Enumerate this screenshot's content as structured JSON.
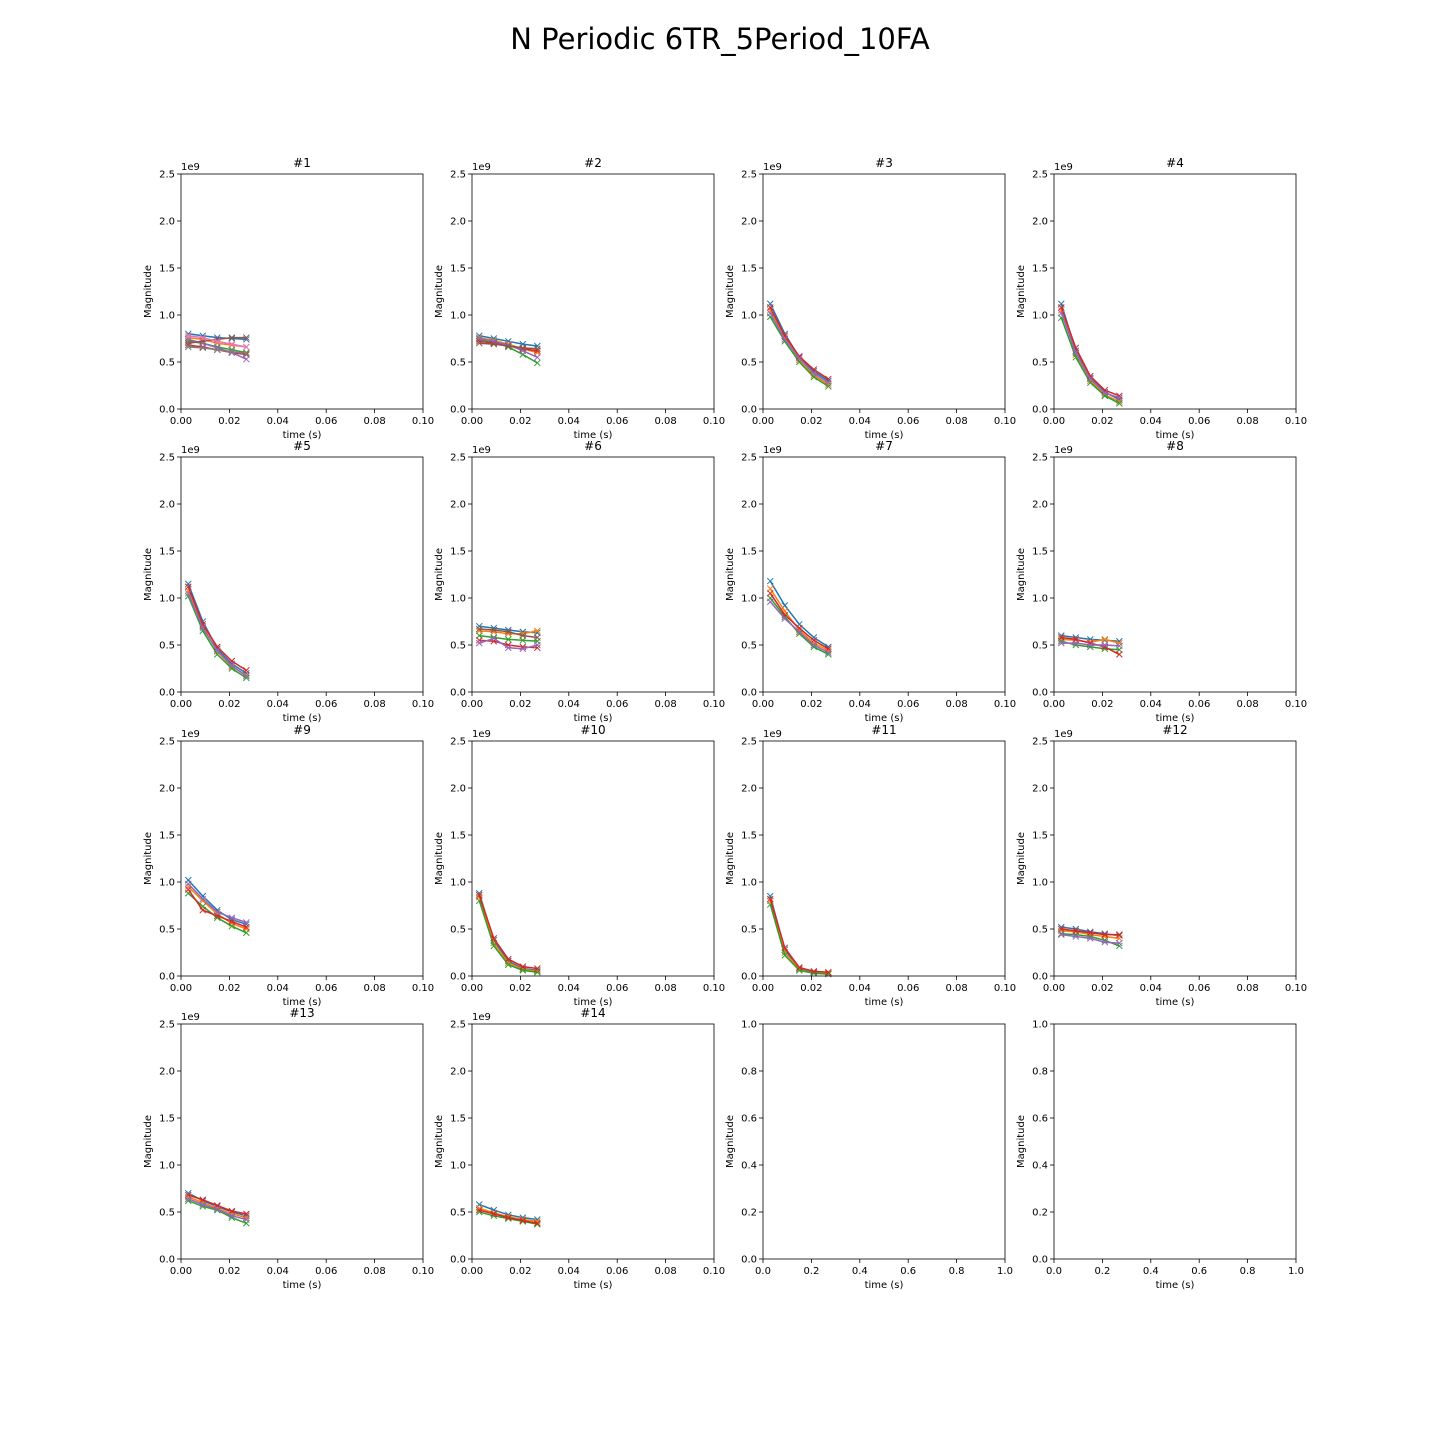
{
  "figure_title": "N Periodic 6TR_5Period_10FA",
  "chart_data": [
    {
      "type": "line",
      "title": "#1",
      "xlabel": "time (s)",
      "ylabel": "Magnitude",
      "xlim": [
        0,
        0.1
      ],
      "ylim": [
        0,
        2.5
      ],
      "y_offset_label": "1e9",
      "xticks": [
        "0.00",
        "0.02",
        "0.04",
        "0.06",
        "0.08",
        "0.10"
      ],
      "yticks": [
        "0.0",
        "0.5",
        "1.0",
        "1.5",
        "2.0",
        "2.5"
      ],
      "x": [
        0.003,
        0.009,
        0.015,
        0.021,
        0.027
      ],
      "series": [
        {
          "values": [
            0.8,
            0.78,
            0.76,
            0.75,
            0.74
          ]
        },
        {
          "values": [
            0.76,
            0.74,
            0.7,
            0.68,
            0.66
          ]
        },
        {
          "values": [
            0.72,
            0.7,
            0.66,
            0.63,
            0.6
          ]
        },
        {
          "values": [
            0.68,
            0.66,
            0.63,
            0.6,
            0.58
          ]
        },
        {
          "values": [
            0.74,
            0.7,
            0.65,
            0.6,
            0.53
          ]
        },
        {
          "values": [
            0.7,
            0.72,
            0.74,
            0.76,
            0.76
          ]
        },
        {
          "values": [
            0.78,
            0.76,
            0.72,
            0.69,
            0.66
          ]
        },
        {
          "values": [
            0.66,
            0.65,
            0.63,
            0.61,
            0.59
          ]
        }
      ]
    },
    {
      "type": "line",
      "title": "#2",
      "xlabel": "time (s)",
      "ylabel": "Magnitude",
      "xlim": [
        0,
        0.1
      ],
      "ylim": [
        0,
        2.5
      ],
      "y_offset_label": "1e9",
      "xticks": [
        "0.00",
        "0.02",
        "0.04",
        "0.06",
        "0.08",
        "0.10"
      ],
      "yticks": [
        "0.0",
        "0.5",
        "1.0",
        "1.5",
        "2.0",
        "2.5"
      ],
      "x": [
        0.003,
        0.009,
        0.015,
        0.021,
        0.027
      ],
      "series": [
        {
          "values": [
            0.78,
            0.75,
            0.72,
            0.69,
            0.67
          ]
        },
        {
          "values": [
            0.76,
            0.73,
            0.69,
            0.64,
            0.6
          ]
        },
        {
          "values": [
            0.74,
            0.71,
            0.66,
            0.58,
            0.49
          ]
        },
        {
          "values": [
            0.72,
            0.7,
            0.67,
            0.64,
            0.62
          ]
        },
        {
          "values": [
            0.75,
            0.72,
            0.68,
            0.62,
            0.55
          ]
        },
        {
          "values": [
            0.7,
            0.69,
            0.67,
            0.65,
            0.64
          ]
        }
      ]
    },
    {
      "type": "line",
      "title": "#3",
      "xlabel": "time (s)",
      "ylabel": "Magnitude",
      "xlim": [
        0,
        0.1
      ],
      "ylim": [
        0,
        2.5
      ],
      "y_offset_label": "1e9",
      "xticks": [
        "0.00",
        "0.02",
        "0.04",
        "0.06",
        "0.08",
        "0.10"
      ],
      "yticks": [
        "0.0",
        "0.5",
        "1.0",
        "1.5",
        "2.0",
        "2.5"
      ],
      "x": [
        0.003,
        0.009,
        0.015,
        0.021,
        0.027
      ],
      "series": [
        {
          "values": [
            1.12,
            0.8,
            0.55,
            0.4,
            0.3
          ]
        },
        {
          "values": [
            1.05,
            0.76,
            0.52,
            0.36,
            0.26
          ]
        },
        {
          "values": [
            0.98,
            0.72,
            0.5,
            0.34,
            0.24
          ]
        },
        {
          "values": [
            1.08,
            0.78,
            0.56,
            0.42,
            0.32
          ]
        },
        {
          "values": [
            1.02,
            0.74,
            0.54,
            0.38,
            0.28
          ]
        }
      ]
    },
    {
      "type": "line",
      "title": "#4",
      "xlabel": "time (s)",
      "ylabel": "Magnitude",
      "xlim": [
        0,
        0.1
      ],
      "ylim": [
        0,
        2.5
      ],
      "y_offset_label": "1e9",
      "xticks": [
        "0.00",
        "0.02",
        "0.04",
        "0.06",
        "0.08",
        "0.10"
      ],
      "yticks": [
        "0.0",
        "0.5",
        "1.0",
        "1.5",
        "2.0",
        "2.5"
      ],
      "x": [
        0.003,
        0.009,
        0.015,
        0.021,
        0.027
      ],
      "series": [
        {
          "values": [
            1.12,
            0.62,
            0.33,
            0.18,
            0.1
          ]
        },
        {
          "values": [
            1.05,
            0.58,
            0.3,
            0.15,
            0.08
          ]
        },
        {
          "values": [
            0.97,
            0.55,
            0.28,
            0.14,
            0.06
          ]
        },
        {
          "values": [
            1.08,
            0.65,
            0.35,
            0.2,
            0.14
          ]
        },
        {
          "values": [
            1.02,
            0.6,
            0.32,
            0.17,
            0.12
          ]
        }
      ]
    },
    {
      "type": "line",
      "title": "#5",
      "xlabel": "time (s)",
      "ylabel": "Magnitude",
      "xlim": [
        0,
        0.1
      ],
      "ylim": [
        0,
        2.5
      ],
      "y_offset_label": "1e9",
      "xticks": [
        "0.00",
        "0.02",
        "0.04",
        "0.06",
        "0.08",
        "0.10"
      ],
      "yticks": [
        "0.0",
        "0.5",
        "1.0",
        "1.5",
        "2.0",
        "2.5"
      ],
      "x": [
        0.003,
        0.009,
        0.015,
        0.021,
        0.027
      ],
      "series": [
        {
          "values": [
            1.15,
            0.75,
            0.46,
            0.3,
            0.2
          ]
        },
        {
          "values": [
            1.08,
            0.7,
            0.43,
            0.27,
            0.18
          ]
        },
        {
          "values": [
            1.02,
            0.65,
            0.4,
            0.25,
            0.15
          ]
        },
        {
          "values": [
            1.12,
            0.72,
            0.48,
            0.33,
            0.23
          ]
        },
        {
          "values": [
            1.05,
            0.68,
            0.44,
            0.28,
            0.17
          ]
        }
      ]
    },
    {
      "type": "line",
      "title": "#6",
      "xlabel": "time (s)",
      "ylabel": "Magnitude",
      "xlim": [
        0,
        0.1
      ],
      "ylim": [
        0,
        2.5
      ],
      "y_offset_label": "1e9",
      "xticks": [
        "0.00",
        "0.02",
        "0.04",
        "0.06",
        "0.08",
        "0.10"
      ],
      "yticks": [
        "0.0",
        "0.5",
        "1.0",
        "1.5",
        "2.0",
        "2.5"
      ],
      "x": [
        0.003,
        0.009,
        0.015,
        0.021,
        0.027
      ],
      "series": [
        {
          "values": [
            0.7,
            0.68,
            0.66,
            0.64,
            0.63
          ]
        },
        {
          "values": [
            0.65,
            0.64,
            0.62,
            0.62,
            0.65
          ]
        },
        {
          "values": [
            0.6,
            0.58,
            0.56,
            0.55,
            0.54
          ]
        },
        {
          "values": [
            0.55,
            0.54,
            0.5,
            0.48,
            0.47
          ]
        },
        {
          "values": [
            0.52,
            0.57,
            0.47,
            0.46,
            0.5
          ]
        },
        {
          "values": [
            0.67,
            0.66,
            0.64,
            0.6,
            0.58
          ]
        }
      ]
    },
    {
      "type": "line",
      "title": "#7",
      "xlabel": "time (s)",
      "ylabel": "Magnitude",
      "xlim": [
        0,
        0.1
      ],
      "ylim": [
        0,
        2.5
      ],
      "y_offset_label": "1e9",
      "xticks": [
        "0.00",
        "0.02",
        "0.04",
        "0.06",
        "0.08",
        "0.10"
      ],
      "yticks": [
        "0.0",
        "0.5",
        "1.0",
        "1.5",
        "2.0",
        "2.5"
      ],
      "x": [
        0.003,
        0.009,
        0.015,
        0.021,
        0.027
      ],
      "series": [
        {
          "values": [
            1.18,
            0.92,
            0.72,
            0.58,
            0.48
          ]
        },
        {
          "values": [
            1.1,
            0.86,
            0.66,
            0.52,
            0.44
          ]
        },
        {
          "values": [
            1.0,
            0.8,
            0.62,
            0.48,
            0.4
          ]
        },
        {
          "values": [
            1.05,
            0.82,
            0.68,
            0.55,
            0.46
          ]
        },
        {
          "values": [
            0.96,
            0.78,
            0.64,
            0.5,
            0.42
          ]
        }
      ]
    },
    {
      "type": "line",
      "title": "#8",
      "xlabel": "time (s)",
      "ylabel": "Magnitude",
      "xlim": [
        0,
        0.1
      ],
      "ylim": [
        0,
        2.5
      ],
      "y_offset_label": "1e9",
      "xticks": [
        "0.00",
        "0.02",
        "0.04",
        "0.06",
        "0.08",
        "0.10"
      ],
      "yticks": [
        "0.0",
        "0.5",
        "1.0",
        "1.5",
        "2.0",
        "2.5"
      ],
      "x": [
        0.003,
        0.009,
        0.015,
        0.021,
        0.027
      ],
      "series": [
        {
          "values": [
            0.6,
            0.58,
            0.56,
            0.55,
            0.54
          ]
        },
        {
          "values": [
            0.56,
            0.55,
            0.53,
            0.56,
            0.52
          ]
        },
        {
          "values": [
            0.54,
            0.5,
            0.48,
            0.46,
            0.45
          ]
        },
        {
          "values": [
            0.58,
            0.56,
            0.52,
            0.48,
            0.4
          ]
        },
        {
          "values": [
            0.52,
            0.52,
            0.5,
            0.5,
            0.49
          ]
        }
      ]
    },
    {
      "type": "line",
      "title": "#9",
      "xlabel": "time (s)",
      "ylabel": "Magnitude",
      "xlim": [
        0,
        0.1
      ],
      "ylim": [
        0,
        2.5
      ],
      "y_offset_label": "1e9",
      "xticks": [
        "0.00",
        "0.02",
        "0.04",
        "0.06",
        "0.08",
        "0.10"
      ],
      "yticks": [
        "0.0",
        "0.5",
        "1.0",
        "1.5",
        "2.0",
        "2.5"
      ],
      "x": [
        0.003,
        0.009,
        0.015,
        0.021,
        0.027
      ],
      "series": [
        {
          "values": [
            1.02,
            0.85,
            0.7,
            0.6,
            0.55
          ]
        },
        {
          "values": [
            0.95,
            0.8,
            0.66,
            0.56,
            0.5
          ]
        },
        {
          "values": [
            0.88,
            0.74,
            0.62,
            0.53,
            0.46
          ]
        },
        {
          "values": [
            0.92,
            0.7,
            0.64,
            0.58,
            0.52
          ]
        },
        {
          "values": [
            0.98,
            0.82,
            0.68,
            0.62,
            0.57
          ]
        }
      ]
    },
    {
      "type": "line",
      "title": "#10",
      "xlabel": "time (s)",
      "ylabel": "Magnitude",
      "xlim": [
        0,
        0.1
      ],
      "ylim": [
        0,
        2.5
      ],
      "y_offset_label": "1e9",
      "xticks": [
        "0.00",
        "0.02",
        "0.04",
        "0.06",
        "0.08",
        "0.10"
      ],
      "yticks": [
        "0.0",
        "0.5",
        "1.0",
        "1.5",
        "2.0",
        "2.5"
      ],
      "x": [
        0.003,
        0.009,
        0.015,
        0.021,
        0.027
      ],
      "series": [
        {
          "values": [
            0.88,
            0.38,
            0.16,
            0.08,
            0.06
          ]
        },
        {
          "values": [
            0.84,
            0.35,
            0.14,
            0.07,
            0.05
          ]
        },
        {
          "values": [
            0.8,
            0.32,
            0.12,
            0.06,
            0.04
          ]
        },
        {
          "values": [
            0.86,
            0.4,
            0.18,
            0.1,
            0.08
          ]
        }
      ]
    },
    {
      "type": "line",
      "title": "#11",
      "xlabel": "time (s)",
      "ylabel": "Magnitude",
      "xlim": [
        0,
        0.1
      ],
      "ylim": [
        0,
        2.5
      ],
      "y_offset_label": "1e9",
      "xticks": [
        "0.00",
        "0.02",
        "0.04",
        "0.06",
        "0.08",
        "0.10"
      ],
      "yticks": [
        "0.0",
        "0.5",
        "1.0",
        "1.5",
        "2.0",
        "2.5"
      ],
      "x": [
        0.003,
        0.009,
        0.015,
        0.021,
        0.027
      ],
      "series": [
        {
          "values": [
            0.85,
            0.28,
            0.08,
            0.04,
            0.03
          ]
        },
        {
          "values": [
            0.8,
            0.25,
            0.07,
            0.03,
            0.03
          ]
        },
        {
          "values": [
            0.76,
            0.22,
            0.06,
            0.03,
            0.02
          ]
        },
        {
          "values": [
            0.82,
            0.3,
            0.09,
            0.05,
            0.04
          ]
        }
      ]
    },
    {
      "type": "line",
      "title": "#12",
      "xlabel": "time (s)",
      "ylabel": "Magnitude",
      "xlim": [
        0,
        0.1
      ],
      "ylim": [
        0,
        2.5
      ],
      "y_offset_label": "1e9",
      "xticks": [
        "0.00",
        "0.02",
        "0.04",
        "0.06",
        "0.08",
        "0.10"
      ],
      "yticks": [
        "0.0",
        "0.5",
        "1.0",
        "1.5",
        "2.0",
        "2.5"
      ],
      "x": [
        0.003,
        0.009,
        0.015,
        0.021,
        0.027
      ],
      "series": [
        {
          "values": [
            0.52,
            0.5,
            0.47,
            0.45,
            0.43
          ]
        },
        {
          "values": [
            0.48,
            0.47,
            0.44,
            0.42,
            0.4
          ]
        },
        {
          "values": [
            0.45,
            0.44,
            0.42,
            0.38,
            0.32
          ]
        },
        {
          "values": [
            0.5,
            0.48,
            0.46,
            0.44,
            0.44
          ]
        },
        {
          "values": [
            0.44,
            0.42,
            0.4,
            0.36,
            0.35
          ]
        }
      ]
    },
    {
      "type": "line",
      "title": "#13",
      "xlabel": "time (s)",
      "ylabel": "Magnitude",
      "xlim": [
        0,
        0.1
      ],
      "ylim": [
        0,
        2.5
      ],
      "y_offset_label": "1e9",
      "xticks": [
        "0.00",
        "0.02",
        "0.04",
        "0.06",
        "0.08",
        "0.10"
      ],
      "yticks": [
        "0.0",
        "0.5",
        "1.0",
        "1.5",
        "2.0",
        "2.5"
      ],
      "x": [
        0.003,
        0.009,
        0.015,
        0.021,
        0.027
      ],
      "series": [
        {
          "values": [
            0.7,
            0.62,
            0.56,
            0.5,
            0.46
          ]
        },
        {
          "values": [
            0.66,
            0.6,
            0.54,
            0.48,
            0.44
          ]
        },
        {
          "values": [
            0.62,
            0.56,
            0.52,
            0.44,
            0.38
          ]
        },
        {
          "values": [
            0.68,
            0.63,
            0.57,
            0.51,
            0.48
          ]
        },
        {
          "values": [
            0.64,
            0.58,
            0.53,
            0.46,
            0.42
          ]
        }
      ]
    },
    {
      "type": "line",
      "title": "#14",
      "xlabel": "time (s)",
      "ylabel": "Magnitude",
      "xlim": [
        0,
        0.1
      ],
      "ylim": [
        0,
        2.5
      ],
      "y_offset_label": "1e9",
      "xticks": [
        "0.00",
        "0.02",
        "0.04",
        "0.06",
        "0.08",
        "0.10"
      ],
      "yticks": [
        "0.0",
        "0.5",
        "1.0",
        "1.5",
        "2.0",
        "2.5"
      ],
      "x": [
        0.003,
        0.009,
        0.015,
        0.021,
        0.027
      ],
      "series": [
        {
          "values": [
            0.58,
            0.52,
            0.47,
            0.44,
            0.42
          ]
        },
        {
          "values": [
            0.54,
            0.49,
            0.45,
            0.42,
            0.4
          ]
        },
        {
          "values": [
            0.5,
            0.46,
            0.43,
            0.4,
            0.37
          ]
        },
        {
          "values": [
            0.52,
            0.48,
            0.44,
            0.41,
            0.38
          ]
        }
      ]
    },
    {
      "type": "line",
      "title": "",
      "xlabel": "time (s)",
      "ylabel": "Magnitude",
      "xlim": [
        0,
        1
      ],
      "ylim": [
        0,
        1
      ],
      "y_offset_label": "",
      "xticks": [
        "0.0",
        "0.2",
        "0.4",
        "0.6",
        "0.8",
        "1.0"
      ],
      "yticks": [
        "0.0",
        "0.2",
        "0.4",
        "0.6",
        "0.8",
        "1.0"
      ],
      "x": [],
      "series": []
    },
    {
      "type": "line",
      "title": "",
      "xlabel": "time (s)",
      "ylabel": "Magnitude",
      "xlim": [
        0,
        1
      ],
      "ylim": [
        0,
        1
      ],
      "y_offset_label": "",
      "xticks": [
        "0.0",
        "0.2",
        "0.4",
        "0.6",
        "0.8",
        "1.0"
      ],
      "yticks": [
        "0.0",
        "0.2",
        "0.4",
        "0.6",
        "0.8",
        "1.0"
      ],
      "x": [],
      "series": []
    }
  ],
  "colors": [
    "#1f77b4",
    "#ff7f0e",
    "#2ca02c",
    "#d62728",
    "#9467bd",
    "#8c564b",
    "#e377c2",
    "#7f7f7f",
    "#bcbd22",
    "#17becf"
  ]
}
